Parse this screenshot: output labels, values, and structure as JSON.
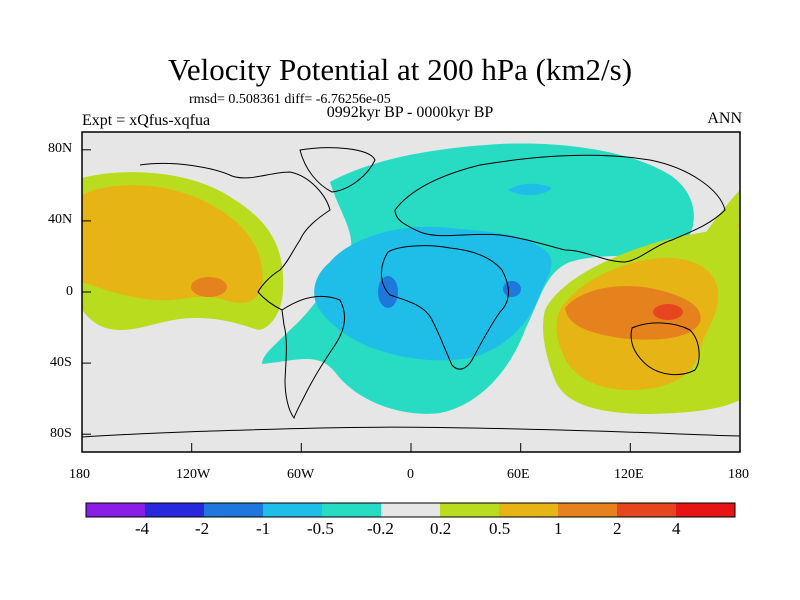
{
  "title": "Velocity Potential at 200 hPa (km2/s)",
  "stats": "rmsd= 0.508361 diff= -6.76256e-05",
  "period": "0992kyr BP - 0000kyr BP",
  "experiment": "Expt = xQfus-xqfua",
  "season": "ANN",
  "map": {
    "projection": "cylindrical-equidistant",
    "lon_range": [
      -180,
      180
    ],
    "lat_range": [
      -90,
      90
    ],
    "x_ticks": [
      "180",
      "120W",
      "60W",
      "0",
      "60E",
      "120E",
      "180"
    ],
    "y_ticks": [
      "80N",
      "40N",
      "0",
      "40S",
      "80S"
    ],
    "background_color": "#e6e6e6",
    "coastline_color": "#000000"
  },
  "colorbar": {
    "labels": [
      "-4",
      "-2",
      "-1",
      "-0.5",
      "-0.2",
      "0.2",
      "0.5",
      "1",
      "2",
      "4"
    ],
    "colors": [
      "#8a1ee6",
      "#2a28dc",
      "#1e78dc",
      "#1ebee8",
      "#28dcc4",
      "#e6e6e6",
      "#b9dc1e",
      "#e6b414",
      "#e6821e",
      "#e6461e",
      "#e61414"
    ]
  }
}
